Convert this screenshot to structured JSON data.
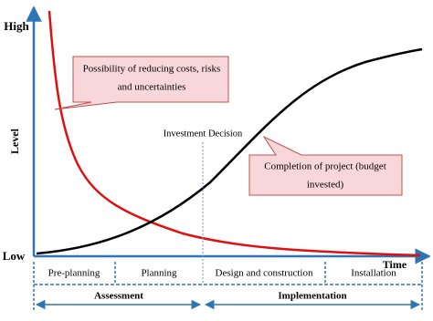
{
  "axes": {
    "high": "High",
    "low": "Low",
    "y_label": "Level",
    "x_label": "Time"
  },
  "annotations": {
    "decision": "Investment Decision",
    "callouts": [
      {
        "lines": [
          "Possibility of reducing costs, risks",
          "and uncertainties"
        ]
      },
      {
        "lines": [
          "Completion of project (budget",
          "invested)"
        ]
      }
    ]
  },
  "phases": [
    "Pre-planning",
    "Planning",
    "Design and construction",
    "Installation"
  ],
  "stages": [
    "Assessment",
    "Implementation"
  ]
}
